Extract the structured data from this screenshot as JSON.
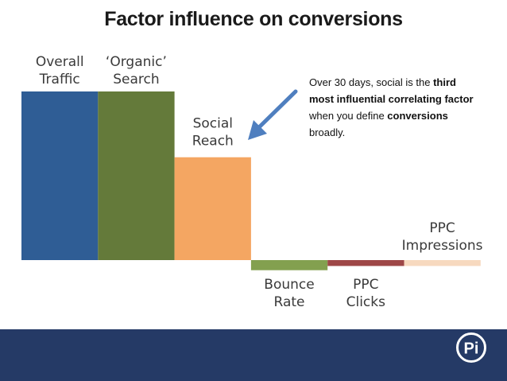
{
  "title": "Factor influence on conversions",
  "annotation": {
    "parts": [
      {
        "text": "Over 30 days, social is the ",
        "bold": false
      },
      {
        "text": "third most influential correlating factor",
        "bold": true
      },
      {
        "text": " when you define ",
        "bold": false
      },
      {
        "text": "conversions",
        "bold": true
      },
      {
        "text": " broadly.",
        "bold": false
      }
    ]
  },
  "logo_text": "Pi",
  "colors": {
    "footer": "#253a66",
    "arrow": "#4f7fbf"
  },
  "chart_data": {
    "type": "bar",
    "categories": [
      [
        "Overall",
        "Traffic"
      ],
      [
        "‘Organic’",
        "Search"
      ],
      [
        "Social",
        "Reach"
      ],
      [
        "Bounce",
        "Rate"
      ],
      [
        "PPC",
        "Clicks"
      ],
      [
        "PPC",
        "Impressions"
      ]
    ],
    "values": [
      1.0,
      1.0,
      0.61,
      -0.06,
      -0.035,
      -0.035
    ],
    "colors": [
      "#2f5d95",
      "#647a3a",
      "#f4a662",
      "#83a04f",
      "#9e4747",
      "#f7d9bf"
    ],
    "ylim": [
      -0.1,
      1.0
    ],
    "grid": false,
    "legend": "none"
  }
}
